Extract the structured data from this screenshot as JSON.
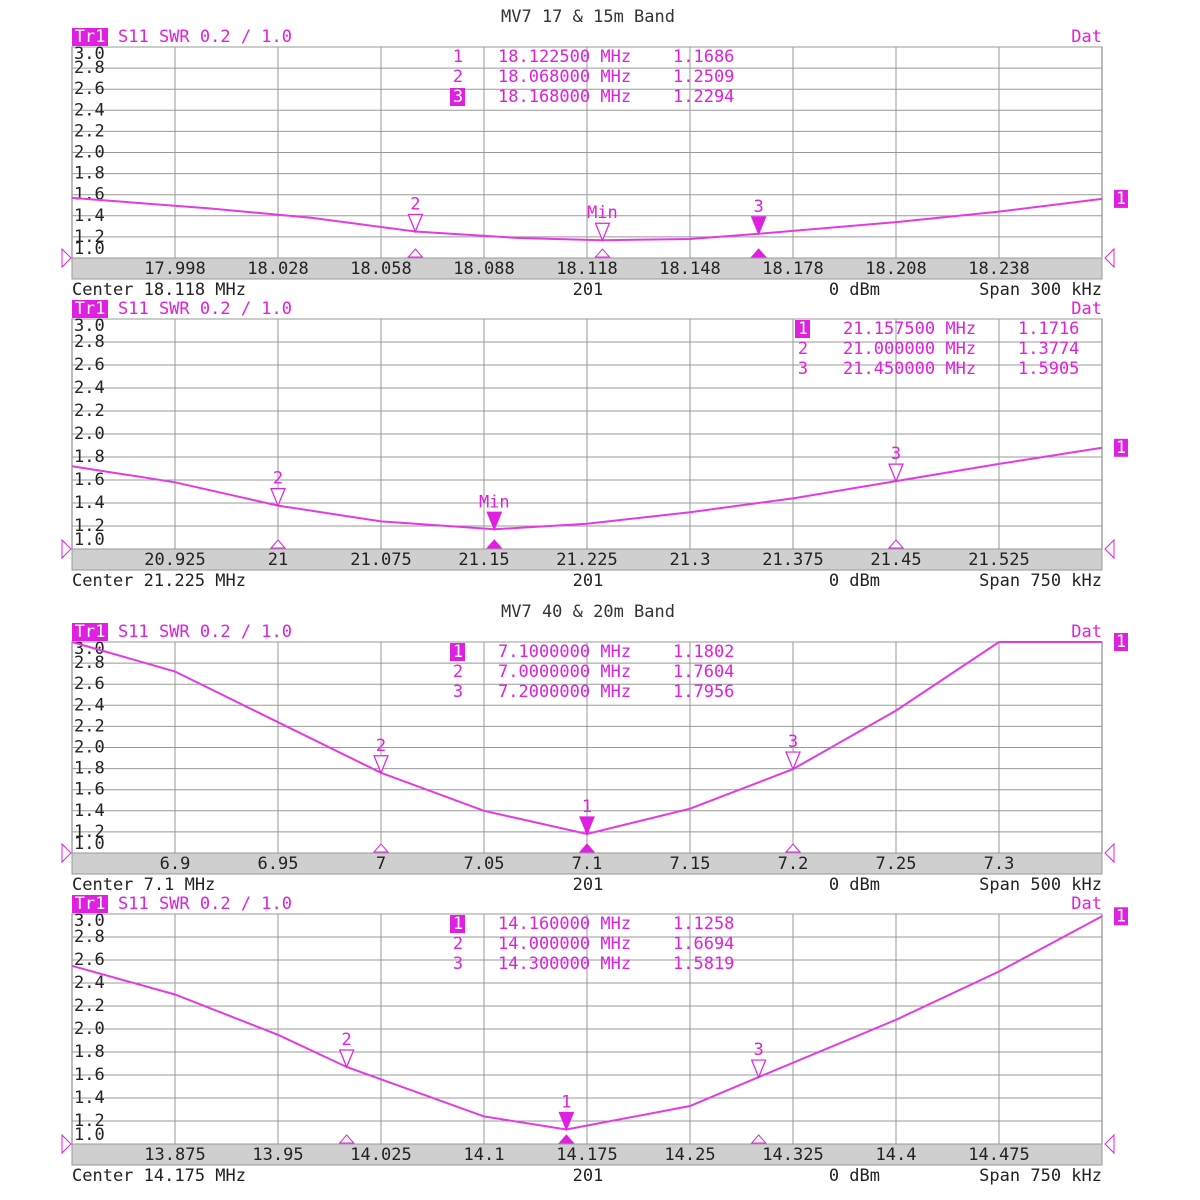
{
  "chart_data": [
    {
      "type": "line",
      "title": "MV7 17 & 15m Band",
      "trace": "Tr1",
      "measurement": "S11 SWR 0.2 / 1.0",
      "status": "Dat",
      "trace_number": "1",
      "center": "Center 18.118 MHz",
      "points": "201",
      "power": "0 dBm",
      "span": "Span 300 kHz",
      "color": "#e33be3",
      "grid": true,
      "xlim": [
        17.968,
        18.268
      ],
      "xticks": [
        17.998,
        18.028,
        18.058,
        18.088,
        18.118,
        18.148,
        18.178,
        18.208,
        18.238
      ],
      "ylim": [
        1,
        3
      ],
      "yticks": [
        {
          "value": 3,
          "label": "3.0"
        },
        2.8,
        2.6,
        2.4,
        2.2,
        {
          "value": 2,
          "label": "2.0"
        },
        1.8,
        1.6,
        1.4,
        1.2,
        {
          "value": 1,
          "label": "1.0"
        }
      ],
      "x": [
        17.968,
        18.008,
        18.038,
        18.068,
        18.098,
        18.1225,
        18.148,
        18.168,
        18.208,
        18.238,
        18.268
      ],
      "values": [
        1.57,
        1.47,
        1.38,
        1.2509,
        1.19,
        1.1686,
        1.18,
        1.2294,
        1.34,
        1.44,
        1.56
      ],
      "active_marker": "3",
      "markers": [
        {
          "number": "1",
          "label": "Min",
          "frequency": "18.122500 MHz",
          "x": 18.1225,
          "value": 1.1686
        },
        {
          "number": "2",
          "label": "2",
          "frequency": "18.068000 MHz",
          "x": 18.068,
          "value": 1.2509
        },
        {
          "number": "3",
          "label": "3",
          "frequency": "18.168000 MHz",
          "x": 18.168,
          "value": 1.2294
        }
      ]
    },
    {
      "type": "line",
      "trace": "Tr1",
      "measurement": "S11 SWR 0.2 / 1.0",
      "status": "Dat",
      "trace_number": "1",
      "center": "Center 21.225 MHz",
      "points": "201",
      "power": "0 dBm",
      "span": "Span 750 kHz",
      "color": "#e33be3",
      "grid": true,
      "xlim": [
        20.85,
        21.6
      ],
      "xticks": [
        20.925,
        21,
        21.075,
        21.15,
        21.225,
        21.3,
        21.375,
        21.45,
        21.525
      ],
      "ylim": [
        1,
        3
      ],
      "yticks": [
        {
          "value": 3,
          "label": "3.0"
        },
        2.8,
        2.6,
        2.4,
        2.2,
        {
          "value": 2,
          "label": "2.0"
        },
        1.8,
        1.6,
        1.4,
        1.2,
        {
          "value": 1,
          "label": "1.0"
        }
      ],
      "x": [
        20.85,
        20.925,
        21.0,
        21.075,
        21.1575,
        21.225,
        21.3,
        21.375,
        21.45,
        21.525,
        21.6
      ],
      "values": [
        1.72,
        1.58,
        1.3774,
        1.24,
        1.1716,
        1.22,
        1.32,
        1.44,
        1.5905,
        1.74,
        1.88
      ],
      "active_marker": "1",
      "markers": [
        {
          "number": "1",
          "label": "Min",
          "frequency": "21.157500 MHz",
          "x": 21.1575,
          "value": 1.1716
        },
        {
          "number": "2",
          "label": "2",
          "frequency": "21.000000 MHz",
          "x": 21.0,
          "value": 1.3774
        },
        {
          "number": "3",
          "label": "3",
          "frequency": "21.450000 MHz",
          "x": 21.45,
          "value": 1.5905
        }
      ]
    },
    {
      "type": "line",
      "title": "MV7 40 & 20m Band",
      "trace": "Tr1",
      "measurement": "S11 SWR 0.2 / 1.0",
      "status": "Dat",
      "trace_number": "1",
      "center": "Center 7.1 MHz",
      "points": "201",
      "power": "0 dBm",
      "span": "Span 500 kHz",
      "color": "#e33be3",
      "grid": true,
      "xlim": [
        6.85,
        7.35
      ],
      "xticks": [
        6.9,
        6.95,
        7,
        7.05,
        7.1,
        7.15,
        7.2,
        7.25,
        7.3
      ],
      "ylim": [
        1,
        3
      ],
      "yticks": [
        {
          "value": 3,
          "label": "3.0"
        },
        2.8,
        2.6,
        2.4,
        2.2,
        {
          "value": 2,
          "label": "2.0"
        },
        1.8,
        1.6,
        1.4,
        1.2,
        {
          "value": 1,
          "label": "1.0"
        }
      ],
      "x": [
        6.85,
        6.9,
        6.95,
        7.0,
        7.05,
        7.1,
        7.15,
        7.2,
        7.25,
        7.3,
        7.35
      ],
      "values": [
        3.0,
        2.72,
        2.24,
        1.7604,
        1.4,
        1.1802,
        1.42,
        1.7956,
        2.35,
        3.0,
        3.0
      ],
      "active_marker": "1",
      "markers": [
        {
          "number": "1",
          "label": "1",
          "frequency": "7.1000000 MHz",
          "x": 7.1,
          "value": 1.1802
        },
        {
          "number": "2",
          "label": "2",
          "frequency": "7.0000000 MHz",
          "x": 7.0,
          "value": 1.7604
        },
        {
          "number": "3",
          "label": "3",
          "frequency": "7.2000000 MHz",
          "x": 7.2,
          "value": 1.7956
        }
      ]
    },
    {
      "type": "line",
      "trace": "Tr1",
      "measurement": "S11 SWR 0.2 / 1.0",
      "status": "Dat",
      "trace_number": "1",
      "center": "Center 14.175 MHz",
      "points": "201",
      "power": "0 dBm",
      "span": "Span 750 kHz",
      "color": "#e33be3",
      "grid": true,
      "xlim": [
        13.8,
        14.55
      ],
      "xticks": [
        13.875,
        13.95,
        14.025,
        14.1,
        14.175,
        14.25,
        14.325,
        14.4,
        14.475
      ],
      "ylim": [
        1,
        3
      ],
      "yticks": [
        {
          "value": 3,
          "label": "3.0"
        },
        2.8,
        2.6,
        2.4,
        2.2,
        {
          "value": 2,
          "label": "2.0"
        },
        1.8,
        1.6,
        1.4,
        1.2,
        {
          "value": 1,
          "label": "1.0"
        }
      ],
      "x": [
        13.8,
        13.875,
        13.95,
        14.0,
        14.1,
        14.16,
        14.25,
        14.3,
        14.4,
        14.475,
        14.55
      ],
      "values": [
        2.55,
        2.3,
        1.95,
        1.6694,
        1.24,
        1.1258,
        1.33,
        1.5819,
        2.08,
        2.5,
        2.98
      ],
      "active_marker": "1",
      "markers": [
        {
          "number": "1",
          "label": "1",
          "frequency": "14.160000 MHz",
          "x": 14.16,
          "value": 1.1258
        },
        {
          "number": "2",
          "label": "2",
          "frequency": "14.000000 MHz",
          "x": 14.0,
          "value": 1.6694
        },
        {
          "number": "3",
          "label": "3",
          "frequency": "14.300000 MHz",
          "x": 14.3,
          "value": 1.5819
        }
      ]
    }
  ]
}
